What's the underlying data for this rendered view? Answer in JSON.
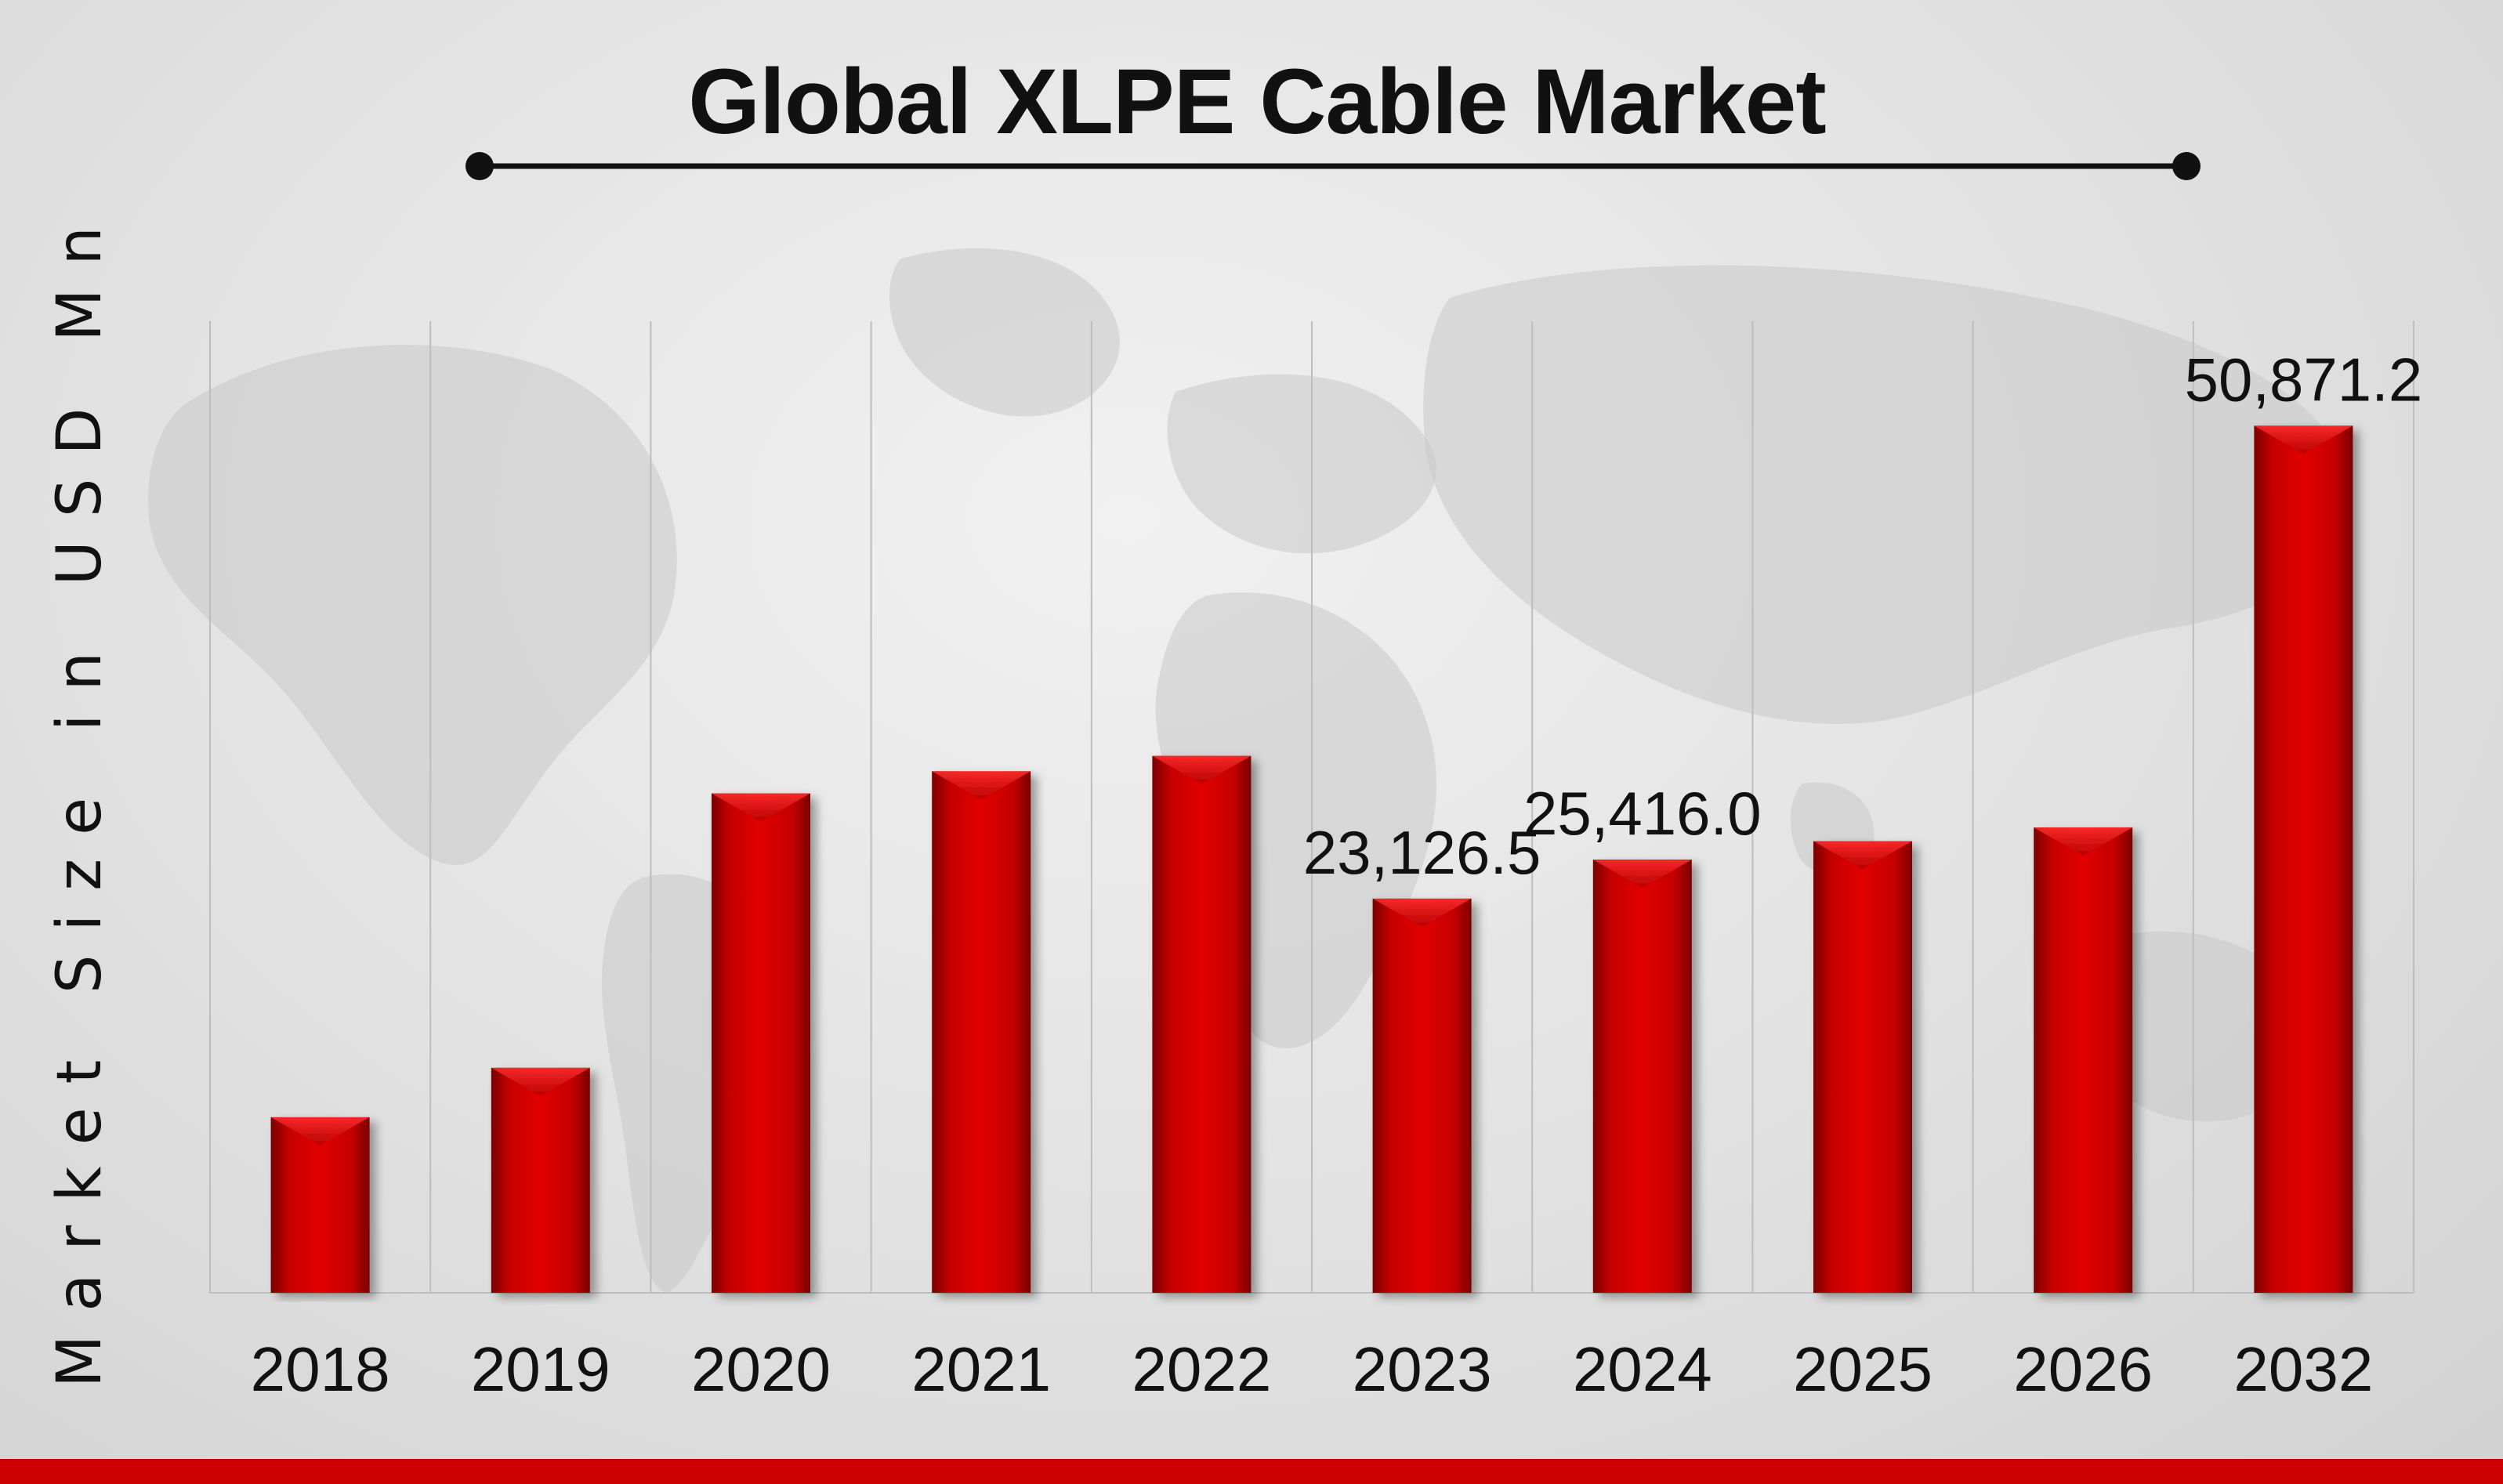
{
  "chart_data": {
    "type": "bar",
    "title": "Global XLPE Cable Market",
    "xlabel": "",
    "ylabel": "Market Size in USD Mn",
    "categories": [
      "2018",
      "2019",
      "2020",
      "2021",
      "2022",
      "2023",
      "2024",
      "2025",
      "2026",
      "2032"
    ],
    "values": [
      10300,
      13200,
      29300,
      30600,
      31500,
      23126.5,
      25416.0,
      26500,
      27300,
      50871.2
    ],
    "data_labels": [
      "",
      "",
      "",
      "",
      "",
      "23,126.5",
      "25,416.0",
      "",
      "",
      "50,871.2"
    ],
    "grid": "vertical",
    "legend": "none",
    "colors": {
      "bar": "#cc0000",
      "bar_dark": "#8a0000",
      "accent_strip": "#cc0000",
      "text": "#111111"
    }
  }
}
